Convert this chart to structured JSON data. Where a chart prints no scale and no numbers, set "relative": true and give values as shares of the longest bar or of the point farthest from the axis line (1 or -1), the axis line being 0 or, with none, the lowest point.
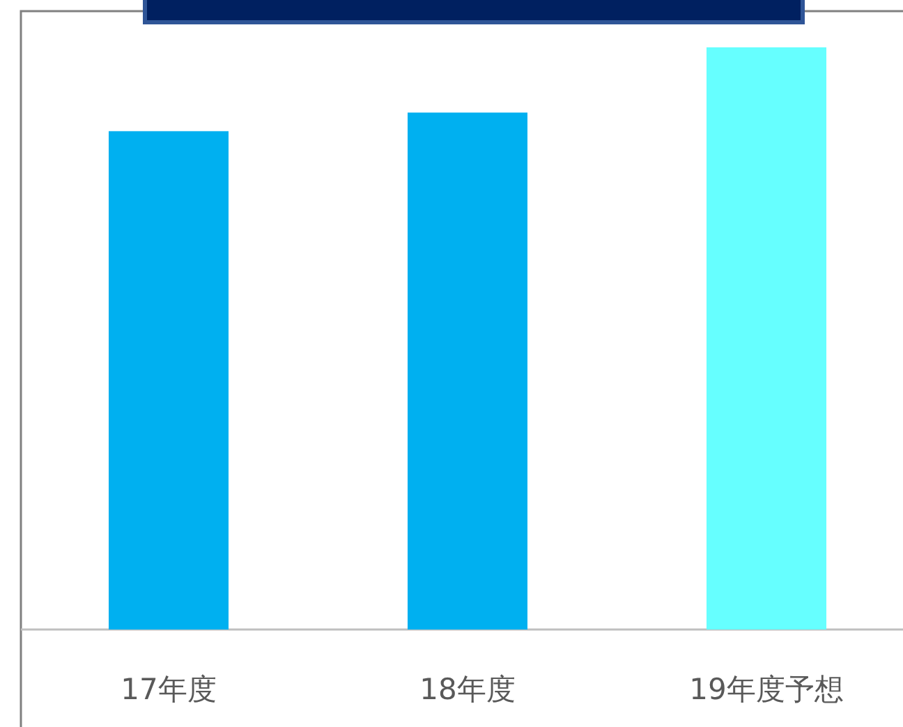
{
  "chart_data": {
    "type": "bar",
    "relative": true,
    "categories": [
      "17年度",
      "18年度",
      "19年度予想"
    ],
    "values": [
      0.856,
      0.888,
      1
    ],
    "colors": [
      "#00b0f0",
      "#00b0f0",
      "#66ffff"
    ]
  }
}
